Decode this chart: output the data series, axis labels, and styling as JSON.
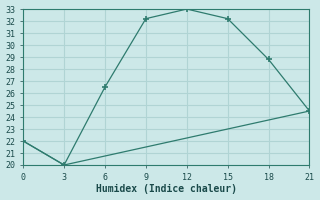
{
  "xlabel": "Humidex (Indice chaleur)",
  "background_color": "#cce8e8",
  "grid_color": "#b0d4d4",
  "line_color": "#2e7b6e",
  "line1_x": [
    0,
    3,
    6,
    9,
    12,
    15,
    18,
    21
  ],
  "line1_y": [
    22,
    20,
    26.5,
    32.2,
    33,
    32.2,
    28.8,
    24.5
  ],
  "line2_x": [
    0,
    3,
    21
  ],
  "line2_y": [
    22,
    20,
    24.5
  ],
  "xlim": [
    0,
    21
  ],
  "ylim": [
    20,
    33
  ],
  "xticks": [
    0,
    3,
    6,
    9,
    12,
    15,
    18,
    21
  ],
  "yticks": [
    20,
    21,
    22,
    23,
    24,
    25,
    26,
    27,
    28,
    29,
    30,
    31,
    32,
    33
  ],
  "tick_fontsize": 6,
  "xlabel_fontsize": 7
}
